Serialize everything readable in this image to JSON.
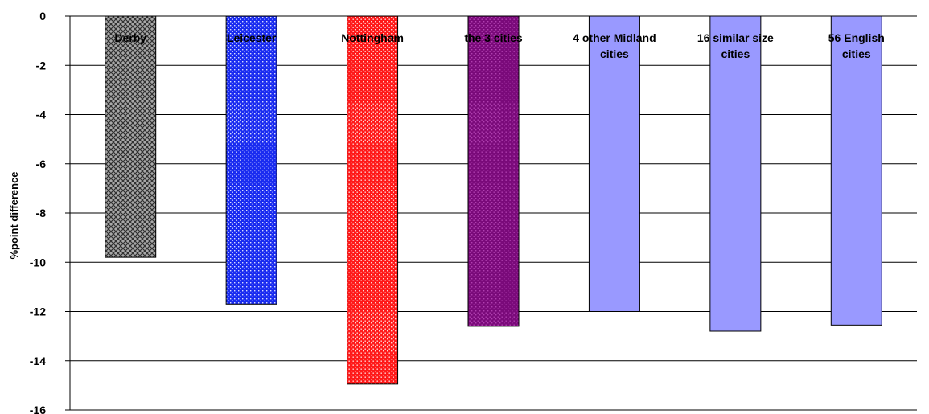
{
  "chart_data": {
    "type": "bar",
    "title": "",
    "xlabel": "",
    "ylabel": "%point difference",
    "ylim": [
      -16,
      0
    ],
    "yticks": [
      0,
      -2,
      -4,
      -6,
      -8,
      -10,
      -12,
      -14,
      -16
    ],
    "grid": true,
    "legend": "none",
    "categories": [
      "Derby",
      "Leicester",
      "Nottingham",
      "the 3 cities",
      "4 other Midland cities",
      "16 similar size cities",
      "56 English cities"
    ],
    "category_label_lines": [
      [
        "Derby"
      ],
      [
        "Leicester"
      ],
      [
        "Nottingham"
      ],
      [
        "the 3 cities"
      ],
      [
        "4 other Midland",
        "cities"
      ],
      [
        "16 similar size",
        "cities"
      ],
      [
        "56 English",
        "cities"
      ]
    ],
    "values": [
      -9.8,
      -11.7,
      -14.95,
      -12.6,
      -12.0,
      -12.8,
      -12.55
    ],
    "bar_styles": [
      {
        "fill": "#a8a8a8",
        "pattern": "checker",
        "pattern_color": "#303030"
      },
      {
        "fill": "#1a2cf0",
        "pattern": "dots",
        "pattern_color": "#d8dcff"
      },
      {
        "fill": "#ff1a1a",
        "pattern": "dots",
        "pattern_color": "#ffd8d8"
      },
      {
        "fill": "#7a0a7a",
        "pattern": "dots",
        "pattern_color": "#b040b0"
      },
      {
        "fill": "#9999ff",
        "pattern": "none",
        "pattern_color": ""
      },
      {
        "fill": "#9999ff",
        "pattern": "none",
        "pattern_color": ""
      },
      {
        "fill": "#9999ff",
        "pattern": "none",
        "pattern_color": ""
      }
    ]
  }
}
